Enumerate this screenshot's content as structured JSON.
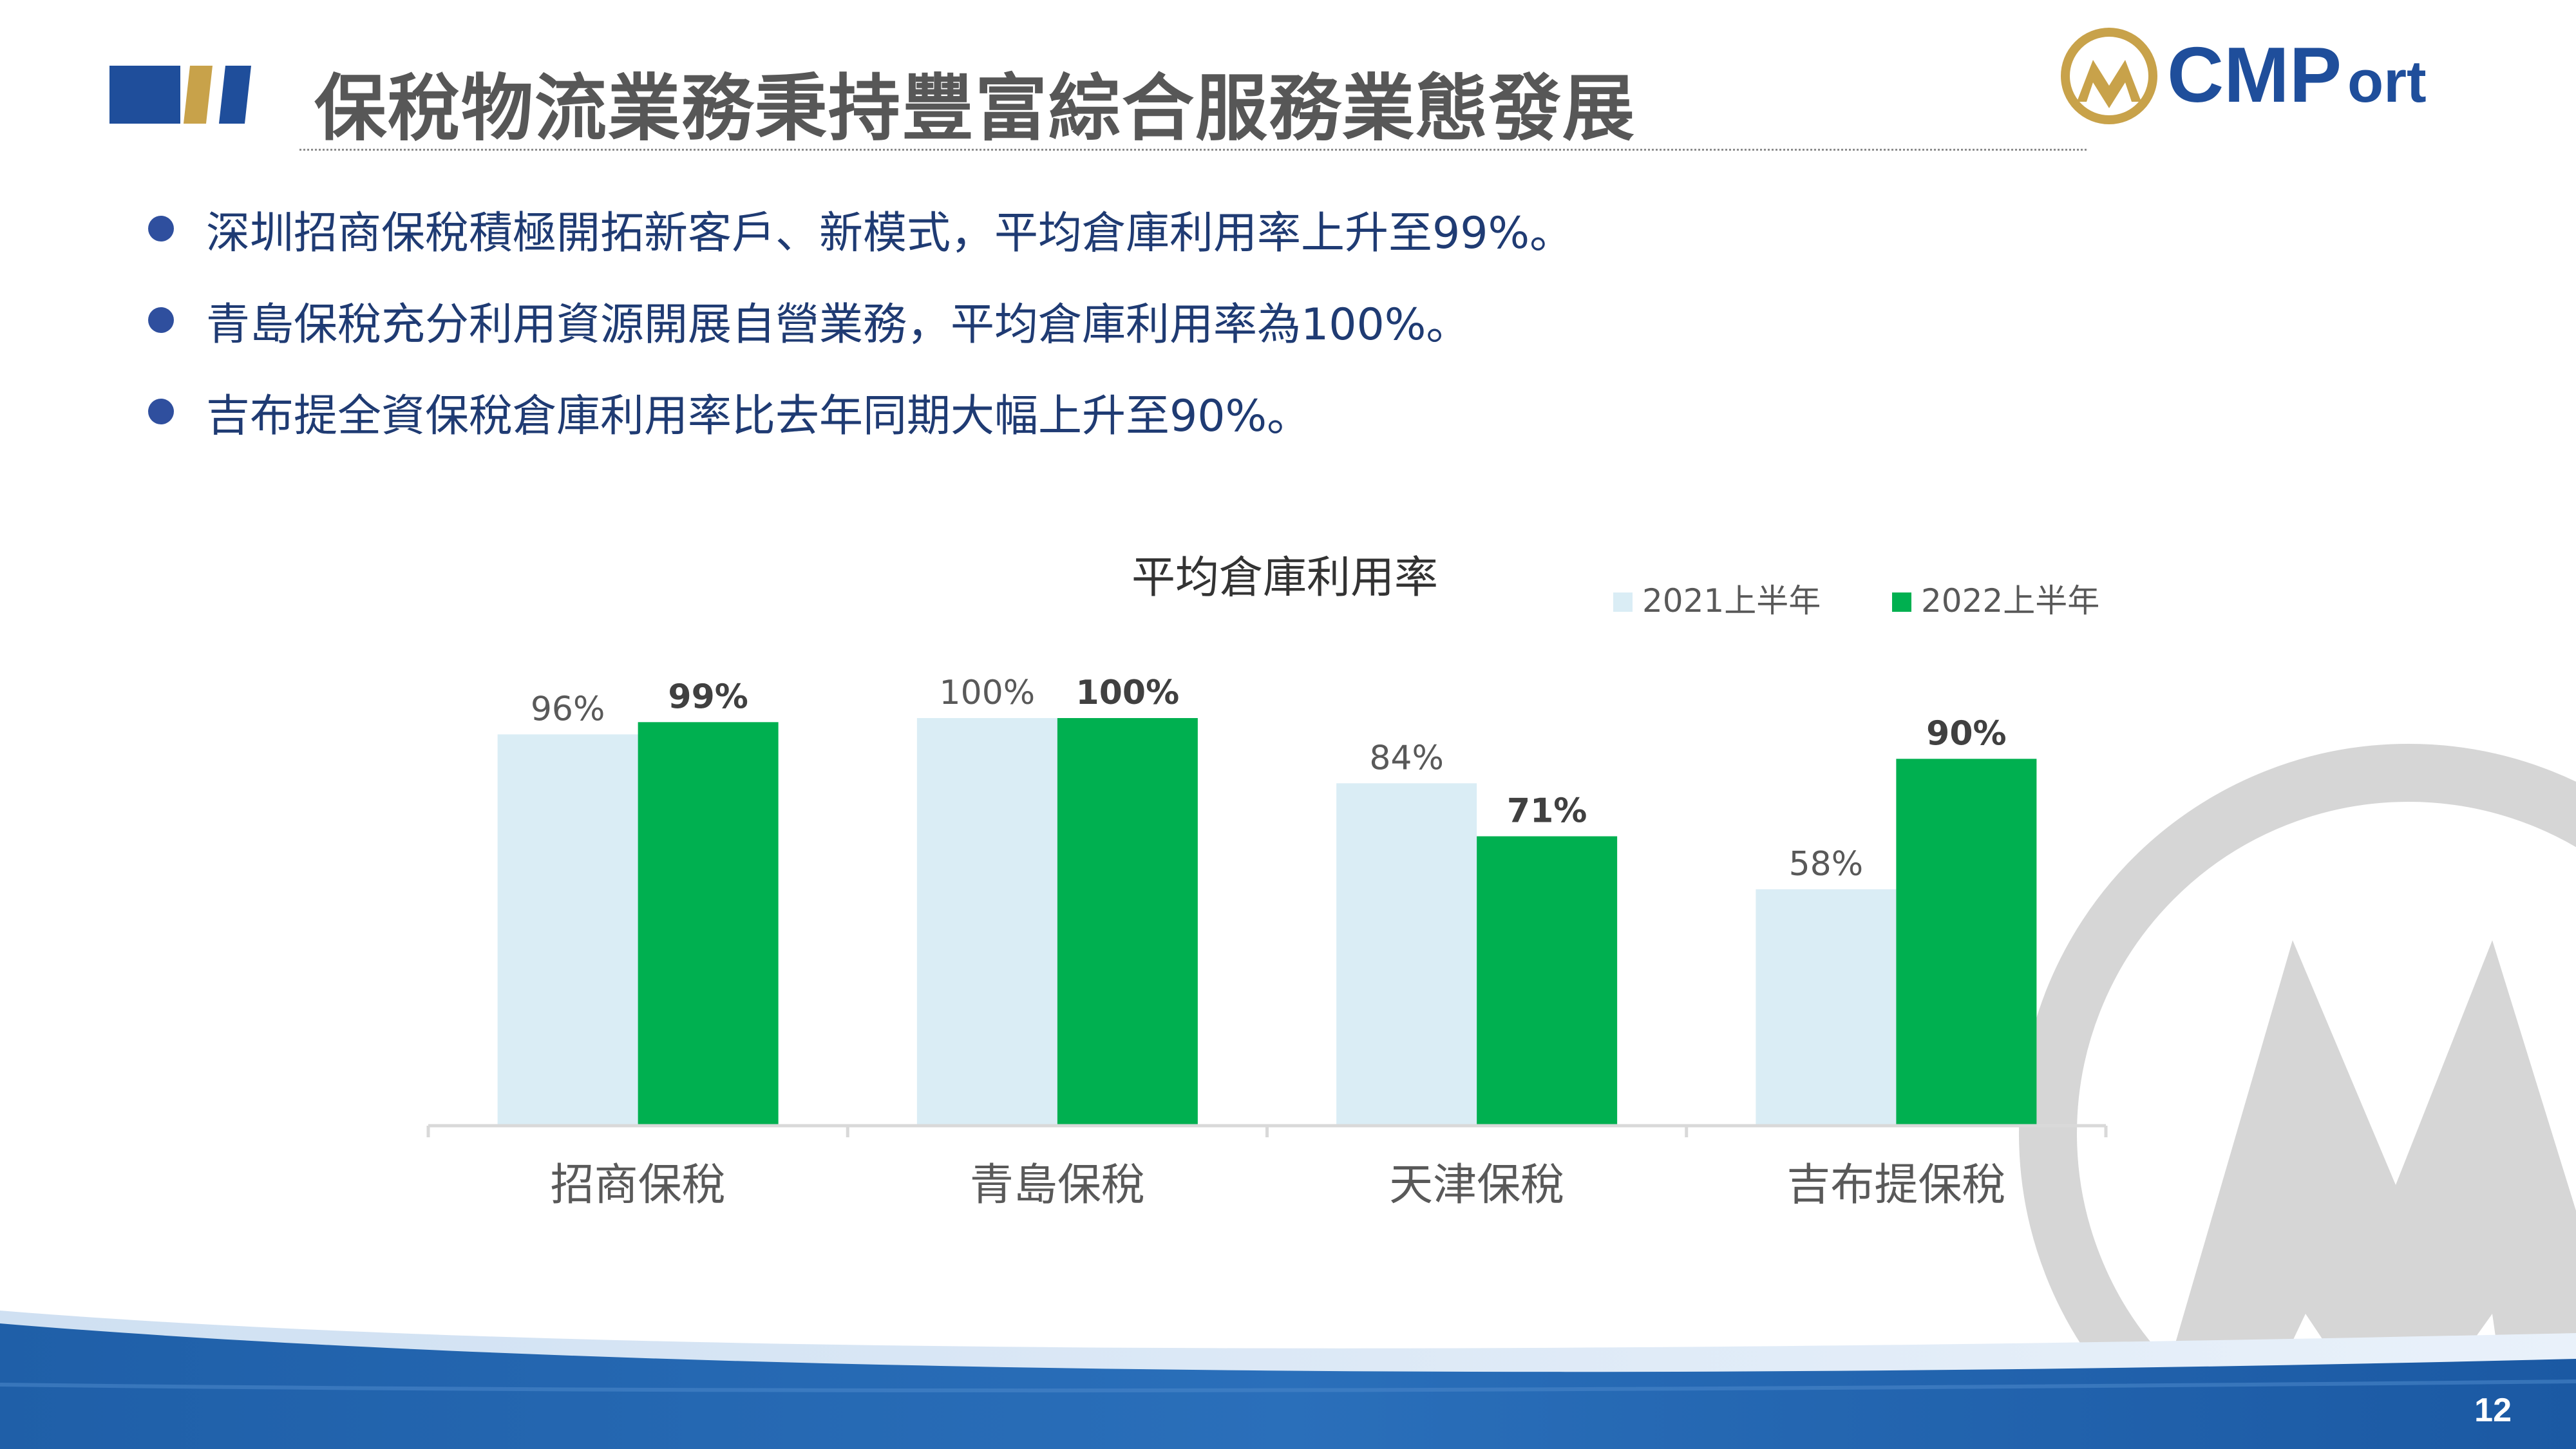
{
  "slide": {
    "title": "保稅物流業務秉持豐富綜合服務業態發展",
    "page_number": "12",
    "logo_text": "CMPort",
    "bullets": [
      "深圳招商保稅積極開拓新客戶、新模式，平均倉庫利用率上升至99%。",
      "青島保稅充分利用資源開展自營業務，平均倉庫利用率為100%。",
      "吉布提全資保稅倉庫利用率比去年同期大幅上升至90%。"
    ],
    "colors": {
      "title_bar_blue": "#1f4e9b",
      "title_bar_gold": "#c8a24a",
      "bullet_text": "#1f3b73",
      "series_2021": "#daedf5",
      "series_2022": "#00b050",
      "footer_blue": "#1f5fa8"
    }
  },
  "chart_data": {
    "type": "bar",
    "title": "平均倉庫利用率",
    "categories": [
      "招商保稅",
      "青島保稅",
      "天津保稅",
      "吉布提保稅"
    ],
    "series": [
      {
        "name": "2021上半年",
        "values": [
          96,
          100,
          84,
          58
        ],
        "labels": [
          "96%",
          "100%",
          "84%",
          "58%"
        ],
        "color": "#daedf5"
      },
      {
        "name": "2022上半年",
        "values": [
          99,
          100,
          71,
          90
        ],
        "labels": [
          "99%",
          "100%",
          "71%",
          "90%"
        ],
        "color": "#00b050"
      }
    ],
    "ylim": [
      0,
      100
    ],
    "grid": false,
    "legend": "top-right"
  }
}
